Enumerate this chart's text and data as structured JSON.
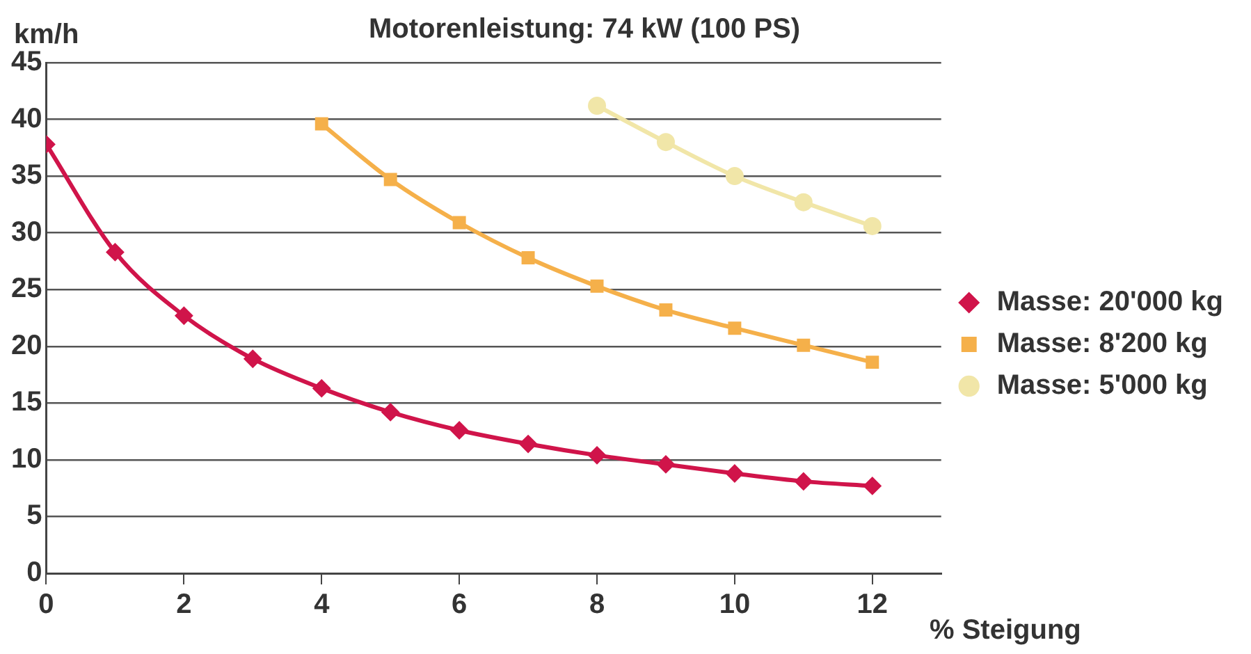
{
  "chart_data": {
    "type": "line",
    "title": "Motorenleistung: 74 kW (100 PS)",
    "ylabel": "km/h",
    "xlabel": "% Steigung",
    "x": [
      0,
      1,
      2,
      3,
      4,
      5,
      6,
      7,
      8,
      9,
      10,
      11,
      12
    ],
    "series": [
      {
        "name": "Masse: 20'000 kg",
        "color": "#d0144a",
        "marker": "diamond",
        "values": [
          37.8,
          28.3,
          22.7,
          18.9,
          16.3,
          14.2,
          12.6,
          11.4,
          10.4,
          9.6,
          8.8,
          8.1,
          7.7
        ]
      },
      {
        "name": "Masse: 8'200 kg",
        "color": "#f5b04a",
        "marker": "square",
        "values": [
          null,
          null,
          null,
          null,
          39.6,
          34.7,
          30.9,
          27.8,
          25.3,
          23.2,
          21.6,
          20.1,
          18.6
        ]
      },
      {
        "name": "Masse: 5'000 kg",
        "color": "#f1e6a8",
        "marker": "circle",
        "values": [
          null,
          null,
          null,
          null,
          null,
          null,
          null,
          null,
          41.2,
          38.0,
          35.0,
          32.7,
          30.6
        ]
      }
    ],
    "xlim": [
      0,
      13
    ],
    "xticks": [
      0,
      2,
      4,
      6,
      8,
      10,
      12
    ],
    "ylim": [
      0,
      45
    ],
    "yticks": [
      0,
      5,
      10,
      15,
      20,
      25,
      30,
      35,
      40,
      45
    ],
    "grid": "y",
    "legend": "right",
    "line_style": "solid"
  }
}
